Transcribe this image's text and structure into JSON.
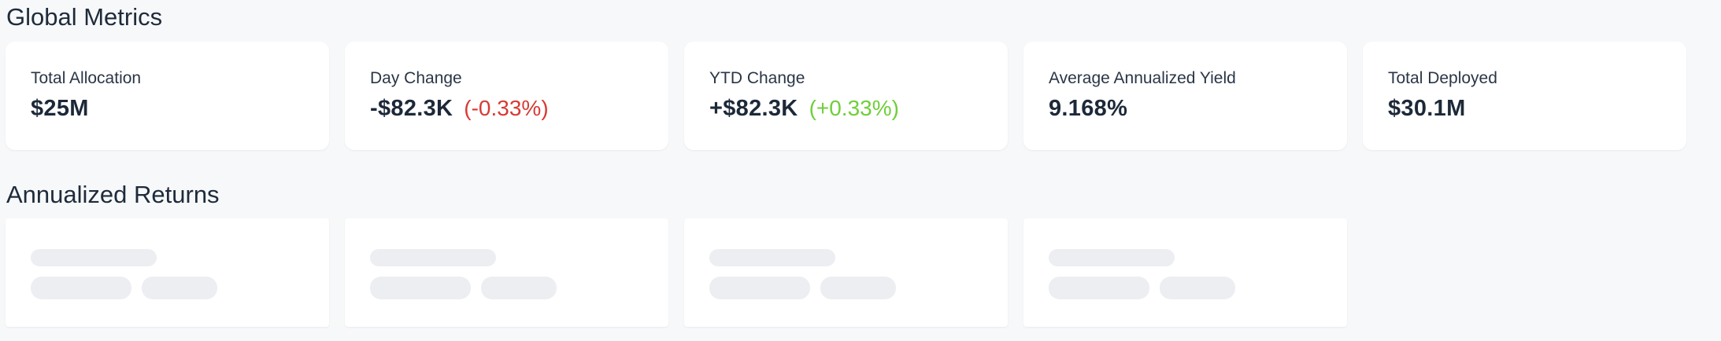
{
  "sections": {
    "global_metrics_title": "Global Metrics",
    "annualized_returns_title": "Annualized Returns"
  },
  "metrics": [
    {
      "label": "Total Allocation",
      "value": "$25M",
      "delta": ""
    },
    {
      "label": "Day Change",
      "value": "-$82.3K",
      "delta": "(-0.33%)",
      "delta_color": "#d83a34"
    },
    {
      "label": "YTD Change",
      "value": "+$82.3K",
      "delta": "(+0.33%)",
      "delta_color": "#6fcf3a"
    },
    {
      "label": "Average Annualized Yield",
      "value": "9.168%",
      "delta": ""
    },
    {
      "label": "Total Deployed",
      "value": "$30.1M",
      "delta": ""
    }
  ],
  "annualized_returns": {
    "loading": true,
    "placeholder_cards": 4
  },
  "colors": {
    "background": "#f7f8fa",
    "card": "#ffffff",
    "negative": "#d83a34",
    "positive": "#6fcf3a",
    "skeleton": "#eceef2"
  }
}
